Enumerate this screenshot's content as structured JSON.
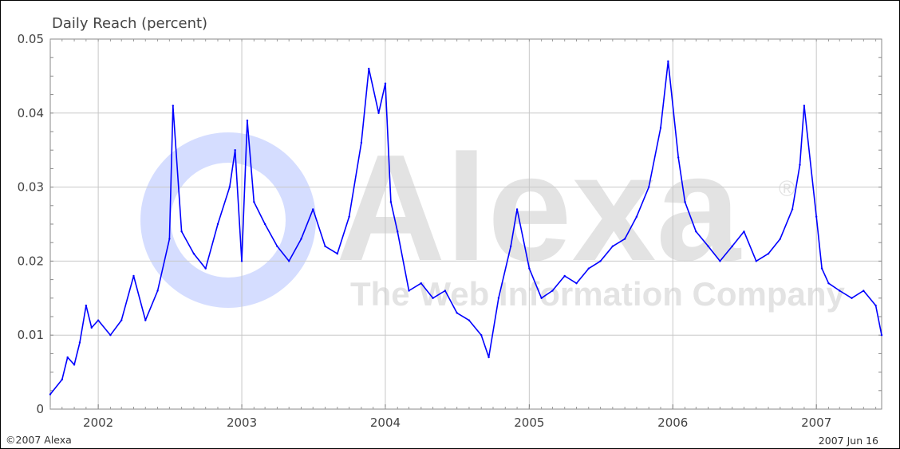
{
  "chart_data": {
    "type": "line",
    "title": "Daily Reach (percent)",
    "xlabel": "",
    "ylabel": "",
    "x_tick_labels": [
      "2002",
      "2003",
      "2004",
      "2005",
      "2006",
      "2007"
    ],
    "y_tick_labels": [
      "0",
      "0.01",
      "0.02",
      "0.03",
      "0.04",
      "0.05"
    ],
    "x_range": [
      "2001-09-01",
      "2007-06-16"
    ],
    "ylim": [
      0,
      0.05
    ],
    "grid": true,
    "line_color": "#0000ff",
    "series": [
      {
        "points": [
          [
            "2001-09-01",
            0.002
          ],
          [
            "2001-10-01",
            0.004
          ],
          [
            "2001-10-15",
            0.007
          ],
          [
            "2001-11-01",
            0.006
          ],
          [
            "2001-11-15",
            0.009
          ],
          [
            "2001-12-01",
            0.014
          ],
          [
            "2001-12-15",
            0.011
          ],
          [
            "2002-01-01",
            0.012
          ],
          [
            "2002-02-01",
            0.01
          ],
          [
            "2002-03-01",
            0.012
          ],
          [
            "2002-04-01",
            0.018
          ],
          [
            "2002-05-01",
            0.012
          ],
          [
            "2002-06-01",
            0.016
          ],
          [
            "2002-07-01",
            0.023
          ],
          [
            "2002-07-10",
            0.041
          ],
          [
            "2002-08-01",
            0.024
          ],
          [
            "2002-09-01",
            0.021
          ],
          [
            "2002-10-01",
            0.019
          ],
          [
            "2002-11-01",
            0.025
          ],
          [
            "2002-12-01",
            0.03
          ],
          [
            "2002-12-15",
            0.035
          ],
          [
            "2003-01-01",
            0.02
          ],
          [
            "2003-01-15",
            0.039
          ],
          [
            "2003-02-01",
            0.028
          ],
          [
            "2003-03-01",
            0.025
          ],
          [
            "2003-04-01",
            0.022
          ],
          [
            "2003-05-01",
            0.02
          ],
          [
            "2003-06-01",
            0.023
          ],
          [
            "2003-07-01",
            0.027
          ],
          [
            "2003-08-01",
            0.022
          ],
          [
            "2003-09-01",
            0.021
          ],
          [
            "2003-10-01",
            0.026
          ],
          [
            "2003-11-01",
            0.036
          ],
          [
            "2003-11-20",
            0.046
          ],
          [
            "2003-12-15",
            0.04
          ],
          [
            "2004-01-01",
            0.044
          ],
          [
            "2004-01-15",
            0.028
          ],
          [
            "2004-02-01",
            0.024
          ],
          [
            "2004-03-01",
            0.016
          ],
          [
            "2004-04-01",
            0.017
          ],
          [
            "2004-05-01",
            0.015
          ],
          [
            "2004-06-01",
            0.016
          ],
          [
            "2004-07-01",
            0.013
          ],
          [
            "2004-08-01",
            0.012
          ],
          [
            "2004-09-01",
            0.01
          ],
          [
            "2004-09-20",
            0.007
          ],
          [
            "2004-10-15",
            0.015
          ],
          [
            "2004-11-15",
            0.022
          ],
          [
            "2004-12-01",
            0.027
          ],
          [
            "2005-01-01",
            0.019
          ],
          [
            "2005-02-01",
            0.015
          ],
          [
            "2005-03-01",
            0.016
          ],
          [
            "2005-04-01",
            0.018
          ],
          [
            "2005-05-01",
            0.017
          ],
          [
            "2005-06-01",
            0.019
          ],
          [
            "2005-07-01",
            0.02
          ],
          [
            "2005-08-01",
            0.022
          ],
          [
            "2005-09-01",
            0.023
          ],
          [
            "2005-10-01",
            0.026
          ],
          [
            "2005-11-01",
            0.03
          ],
          [
            "2005-12-01",
            0.038
          ],
          [
            "2005-12-20",
            0.047
          ],
          [
            "2006-01-15",
            0.034
          ],
          [
            "2006-02-01",
            0.028
          ],
          [
            "2006-03-01",
            0.024
          ],
          [
            "2006-04-01",
            0.022
          ],
          [
            "2006-05-01",
            0.02
          ],
          [
            "2006-06-01",
            0.022
          ],
          [
            "2006-07-01",
            0.024
          ],
          [
            "2006-08-01",
            0.02
          ],
          [
            "2006-09-01",
            0.021
          ],
          [
            "2006-10-01",
            0.023
          ],
          [
            "2006-11-01",
            0.027
          ],
          [
            "2006-11-20",
            0.033
          ],
          [
            "2006-12-01",
            0.041
          ],
          [
            "2007-01-01",
            0.026
          ],
          [
            "2007-01-15",
            0.019
          ],
          [
            "2007-02-01",
            0.017
          ],
          [
            "2007-03-01",
            0.016
          ],
          [
            "2007-04-01",
            0.015
          ],
          [
            "2007-05-01",
            0.016
          ],
          [
            "2007-06-01",
            0.014
          ],
          [
            "2007-06-16",
            0.01
          ]
        ]
      }
    ]
  },
  "watermark": {
    "brand": "Alexa",
    "tagline": "The Web Information Company",
    "registered_mark": "®"
  },
  "footer": {
    "copyright": "©2007 Alexa",
    "date": "2007 Jun 16"
  }
}
